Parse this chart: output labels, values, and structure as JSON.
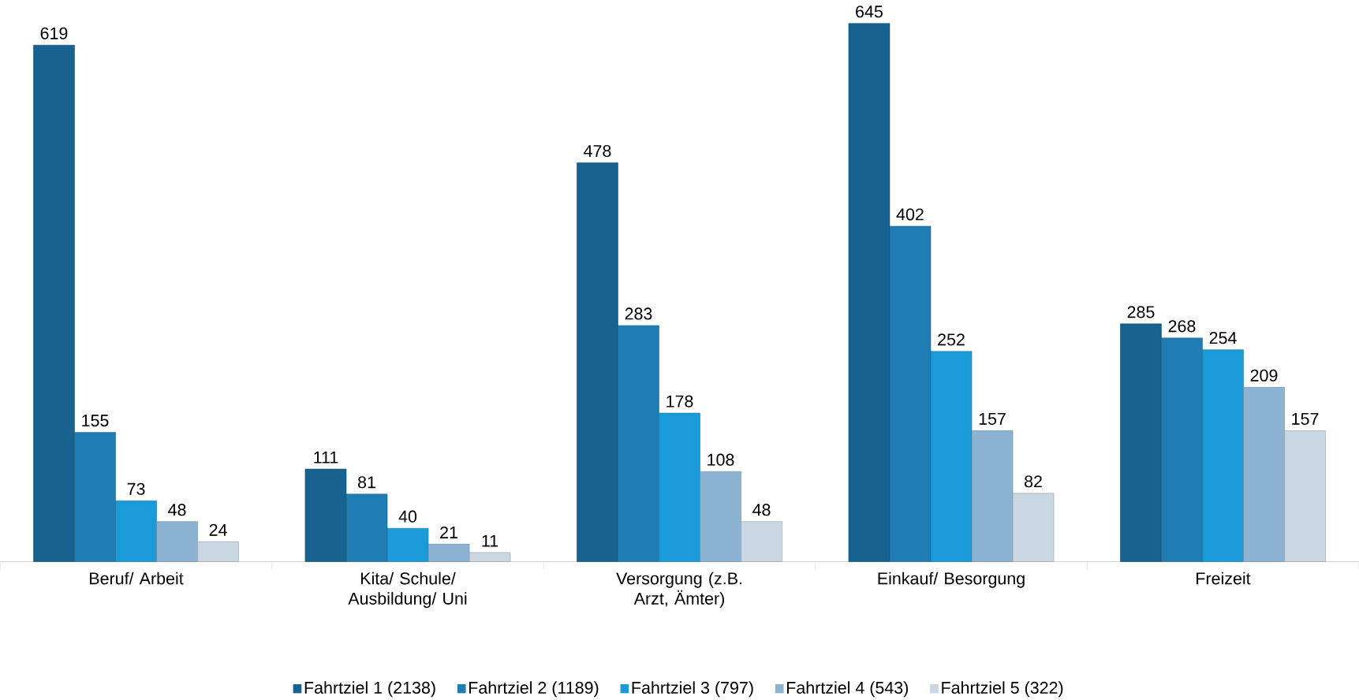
{
  "chart_data": {
    "type": "bar",
    "categories": [
      "Beruf/ Arbeit",
      "Kita/ Schule/ Ausbildung/ Uni",
      "Versorgung (z.B. Arzt, Ämter)",
      "Einkauf/ Besorgung",
      "Freizeit"
    ],
    "series": [
      {
        "name": "Fahrtziel 1 (2138)",
        "color": "#17628e",
        "values": [
          619,
          111,
          478,
          645,
          285
        ]
      },
      {
        "name": "Fahrtziel 2 (1189)",
        "color": "#1f7db3",
        "values": [
          155,
          81,
          283,
          402,
          268
        ]
      },
      {
        "name": "Fahrtziel 3 (797)",
        "color": "#1b9ad8",
        "values": [
          73,
          40,
          178,
          252,
          254
        ]
      },
      {
        "name": "Fahrtziel 4 (543)",
        "color": "#8db3d2",
        "values": [
          48,
          21,
          108,
          157,
          209
        ]
      },
      {
        "name": "Fahrtziel 5 (322)",
        "color": "#c9d7e3",
        "values": [
          24,
          11,
          48,
          82,
          157
        ]
      }
    ],
    "data_labels": true,
    "legend": "bottom"
  }
}
